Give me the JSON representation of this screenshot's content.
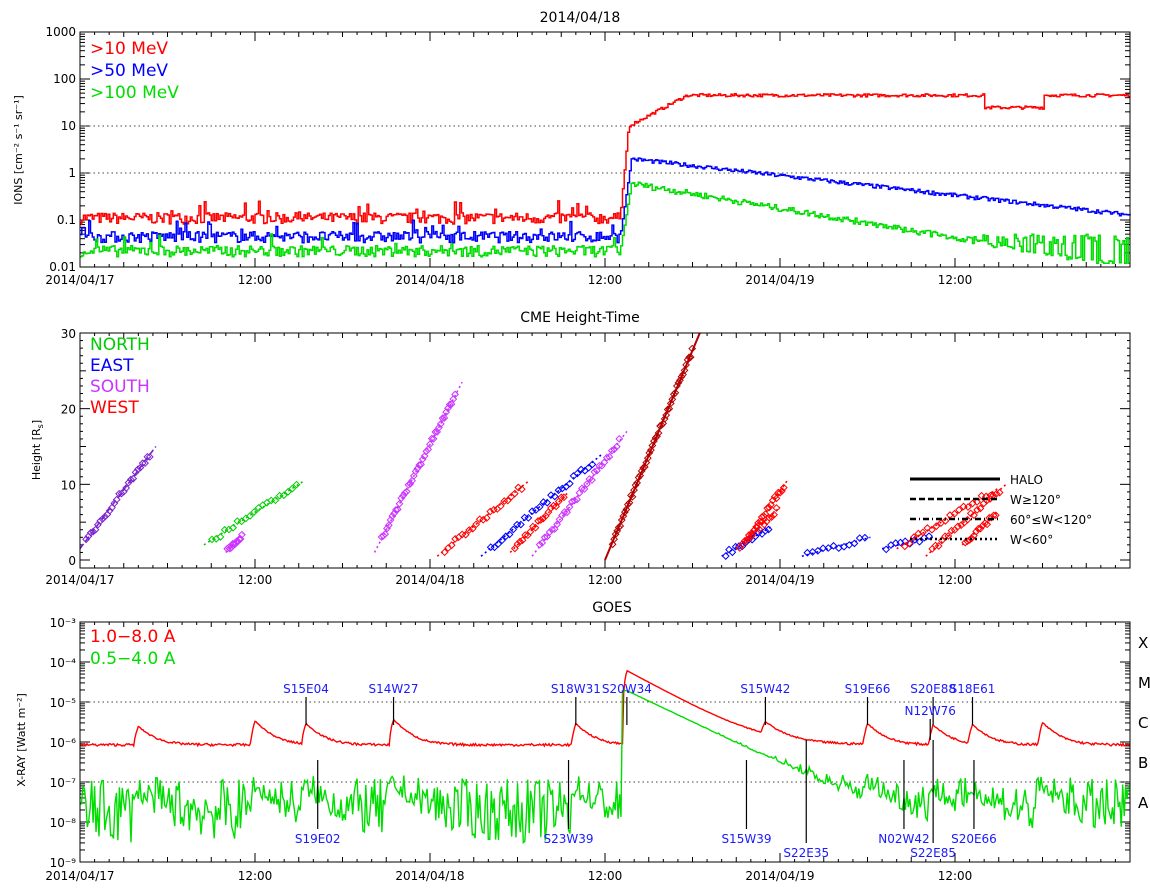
{
  "time_axis": {
    "start": "2014/04/17 00:00",
    "end": "2014/04/19 23:59",
    "tick_labels": [
      {
        "t": 0,
        "label": "2014/04/17"
      },
      {
        "t": 12,
        "label": "12:00"
      },
      {
        "t": 24,
        "label": "2014/04/18"
      },
      {
        "t": 36,
        "label": "12:00"
      },
      {
        "t": 48,
        "label": "2014/04/19"
      },
      {
        "t": 60,
        "label": "12:00"
      }
    ]
  },
  "chart_data": [
    {
      "type": "line",
      "title": "2014/04/18",
      "ylabel": "IONS [cm⁻² s⁻¹ sr⁻¹]",
      "yscale": "log",
      "ylim": [
        0.01,
        1000
      ],
      "ytick_labels": [
        "0.01",
        "0.1",
        "1",
        "10",
        "100",
        "1000"
      ],
      "reference_lines": [
        1,
        10
      ],
      "legend": "top-left",
      "series": [
        {
          "name": ">10 MeV",
          "color": "#ff0000",
          "pre": 0.1,
          "peak": 10,
          "late": 45
        },
        {
          "name": ">50 MeV",
          "color": "#0000ff",
          "pre": 0.04,
          "peak": 2,
          "late": 0.12
        },
        {
          "name": ">100 MeV",
          "color": "#00dd00",
          "pre": 0.02,
          "peak": 0.6,
          "late": 0.02
        }
      ],
      "onset_time": "2014/04/18 13:00"
    },
    {
      "type": "scatter",
      "title": "CME Height-Time",
      "ylabel": "Height [R",
      "ylabel_sub": "s",
      "ylim": [
        0,
        30
      ],
      "ytick_labels": [
        "0",
        "10",
        "20",
        "30"
      ],
      "legend": "top-left",
      "legend_entries": [
        {
          "name": "NORTH",
          "color": "#00cc00"
        },
        {
          "name": "EAST",
          "color": "#0000ff"
        },
        {
          "name": "SOUTH",
          "color": "#cc33ff"
        },
        {
          "name": "WEST",
          "color": "#ff0000"
        }
      ],
      "linestyle_legend": [
        {
          "label": "HALO",
          "style": "solid"
        },
        {
          "label": "W≥120°",
          "style": "dashed"
        },
        {
          "label": "60°≤W<120°",
          "style": "dashdot"
        },
        {
          "label": "W<60°",
          "style": "dotted"
        }
      ],
      "events": [
        {
          "color": "#7a22cc",
          "t0": 0.0,
          "h0": 1.5,
          "t1": 5.2,
          "h1": 15,
          "style": "dashed"
        },
        {
          "color": "#00cc00",
          "t0": 8.5,
          "h0": 2.0,
          "t1": 15.4,
          "h1": 10.5,
          "style": "dotted"
        },
        {
          "color": "#cc33ff",
          "t0": 10.0,
          "h0": 1.0,
          "t1": 11.2,
          "h1": 3.5,
          "style": "dotted"
        },
        {
          "color": "#cc33ff",
          "t0": 20.2,
          "h0": 1.0,
          "t1": 26.2,
          "h1": 23.5,
          "style": "dotted"
        },
        {
          "color": "#ff0000",
          "t0": 24.5,
          "h0": 0.5,
          "t1": 30.8,
          "h1": 10.5,
          "style": "dotted"
        },
        {
          "color": "#0000ff",
          "t0": 27.5,
          "h0": 0.5,
          "t1": 35.8,
          "h1": 14.0,
          "style": "dotted"
        },
        {
          "color": "#ff0000",
          "t0": 29.5,
          "h0": 1.0,
          "t1": 33.5,
          "h1": 9.0,
          "style": "dotted"
        },
        {
          "color": "#cc33ff",
          "t0": 31.0,
          "h0": 0.5,
          "t1": 37.5,
          "h1": 17.0,
          "style": "dotted"
        },
        {
          "color": "#b30000",
          "t0": 36.0,
          "h0": 0.0,
          "t1": 42.5,
          "h1": 30.0,
          "style": "solid"
        },
        {
          "color": "#ff0000",
          "t0": 45.5,
          "h0": 2.0,
          "t1": 48.5,
          "h1": 10.5,
          "style": "dotted"
        },
        {
          "color": "#0000ff",
          "t0": 44.0,
          "h0": 0.5,
          "t1": 47.5,
          "h1": 4.5,
          "style": "dotted"
        },
        {
          "color": "#ff0000",
          "t0": 45.0,
          "h0": 1.5,
          "t1": 48.0,
          "h1": 7.0,
          "style": "dotted"
        },
        {
          "color": "#0000ff",
          "t0": 49.5,
          "h0": 0.5,
          "t1": 54.2,
          "h1": 3.0,
          "style": "dotted"
        },
        {
          "color": "#0000ff",
          "t0": 55.0,
          "h0": 1.5,
          "t1": 58.5,
          "h1": 3.0,
          "style": "dotted"
        },
        {
          "color": "#ff0000",
          "t0": 56.0,
          "h0": 1.5,
          "t1": 63.0,
          "h1": 9.5,
          "style": "dotted"
        },
        {
          "color": "#ff0000",
          "t0": 58.0,
          "h0": 0.5,
          "t1": 63.5,
          "h1": 10.0,
          "style": "dotted"
        },
        {
          "color": "#ff0000",
          "t0": 60.5,
          "h0": 2.0,
          "t1": 63.0,
          "h1": 6.5,
          "style": "dotted"
        }
      ]
    },
    {
      "type": "line",
      "title": "GOES",
      "ylabel": "X-RAY [Watt m⁻²]",
      "yscale": "log",
      "ylim": [
        1e-09,
        0.001
      ],
      "ytick_labels": [
        "10⁻⁹",
        "10⁻⁸",
        "10⁻⁷",
        "10⁻⁶",
        "10⁻⁵",
        "10⁻⁴",
        "10⁻³"
      ],
      "reference_lines": [
        1e-05,
        1e-07
      ],
      "flare_classes": [
        "X",
        "M",
        "C",
        "B",
        "A"
      ],
      "legend": "top-left",
      "series": [
        {
          "name": "1.0−8.0 A",
          "color": "#ff0000",
          "baseline": 1e-06,
          "peak": 8e-05,
          "peak_time": "2014/04/18 13:00"
        },
        {
          "name": "0.5−4.0 A",
          "color": "#00dd00",
          "baseline": 3e-09,
          "peak": 2e-05,
          "peak_time": "2014/04/18 13:00"
        }
      ],
      "flare_annotations": [
        {
          "label": "S15E04",
          "t": 15.5,
          "pos": "above"
        },
        {
          "label": "S14W27",
          "t": 21.5,
          "pos": "above"
        },
        {
          "label": "S18W31",
          "t": 34.0,
          "pos": "above"
        },
        {
          "label": "S20W34",
          "t": 37.5,
          "pos": "above"
        },
        {
          "label": "S15W42",
          "t": 47.0,
          "pos": "above"
        },
        {
          "label": "S19E66",
          "t": 54.0,
          "pos": "above"
        },
        {
          "label": "S20E88",
          "t": 58.5,
          "pos": "above"
        },
        {
          "label": "N12W76",
          "t": 58.3,
          "pos": "above2"
        },
        {
          "label": "S18E61",
          "t": 61.2,
          "pos": "above"
        },
        {
          "label": "S19E02",
          "t": 16.3,
          "pos": "below"
        },
        {
          "label": "S23W39",
          "t": 33.5,
          "pos": "below"
        },
        {
          "label": "S15W39",
          "t": 45.7,
          "pos": "below"
        },
        {
          "label": "S22E35",
          "t": 49.8,
          "pos": "below2"
        },
        {
          "label": "N02W42",
          "t": 56.5,
          "pos": "below"
        },
        {
          "label": "S22E85",
          "t": 58.5,
          "pos": "below2"
        },
        {
          "label": "S20E66",
          "t": 61.3,
          "pos": "below"
        }
      ]
    }
  ]
}
